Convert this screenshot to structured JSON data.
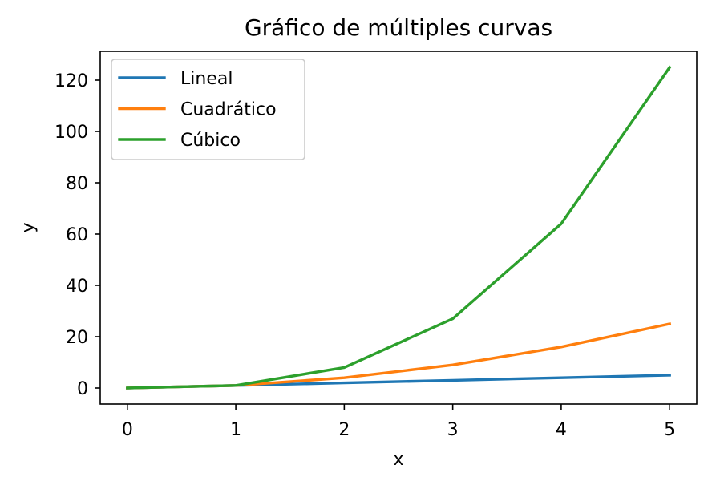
{
  "chart_data": {
    "type": "line",
    "title": "Gráfico de múltiples curvas",
    "xlabel": "x",
    "ylabel": "y",
    "x": [
      0,
      1,
      2,
      3,
      4,
      5
    ],
    "xlim": [
      -0.25,
      5.25
    ],
    "ylim": [
      -6.25,
      131.25
    ],
    "xticks": [
      0,
      1,
      2,
      3,
      4,
      5
    ],
    "yticks": [
      0,
      20,
      40,
      60,
      80,
      100,
      120
    ],
    "grid": false,
    "legend_position": "top-left",
    "series": [
      {
        "name": "Lineal",
        "color": "#1f77b4",
        "values": [
          0,
          1,
          2,
          3,
          4,
          5
        ]
      },
      {
        "name": "Cuadrático",
        "color": "#ff7f0e",
        "values": [
          0,
          1,
          4,
          9,
          16,
          25
        ]
      },
      {
        "name": "Cúbico",
        "color": "#2ca02c",
        "values": [
          0,
          1,
          8,
          27,
          64,
          125
        ]
      }
    ]
  }
}
